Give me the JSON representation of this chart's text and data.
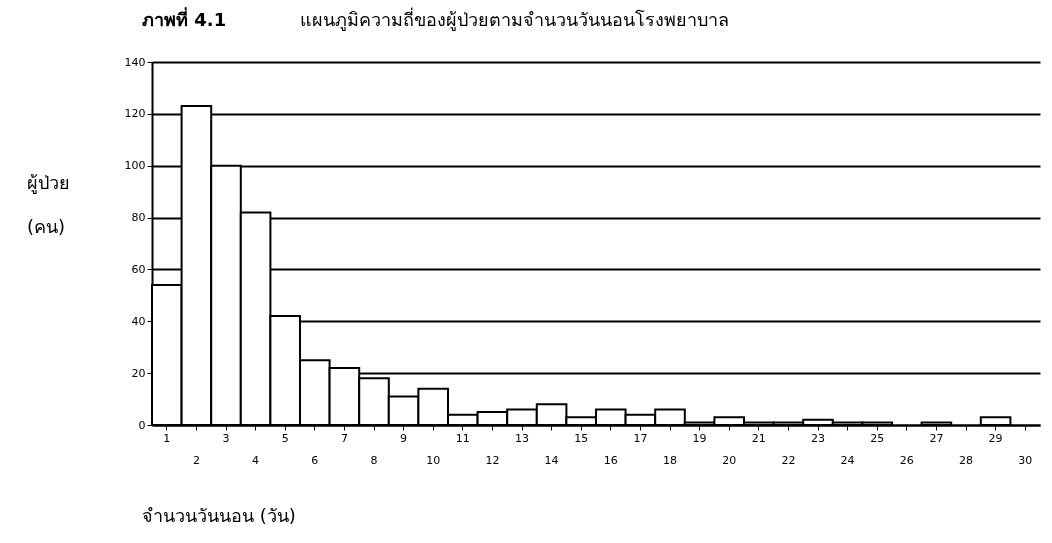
{
  "chart_data": {
    "type": "bar",
    "title": "ภาพที่ 4.1",
    "subtitle": "แผนภูมิความถี่ของผู้ป่วยตามจำนวนวันนอนโรงพยาบาล",
    "xlabel": "จำนวนวันนอน (วัน)",
    "ylabel": "ผู้ป่วย\n(คน)",
    "categories": [
      "1",
      "2",
      "3",
      "4",
      "5",
      "6",
      "7",
      "8",
      "9",
      "10",
      "11",
      "12",
      "13",
      "14",
      "15",
      "16",
      "17",
      "18",
      "19",
      "20",
      "21",
      "22",
      "23",
      "24",
      "25",
      "26",
      "27",
      "28",
      "29",
      "30"
    ],
    "values": [
      54,
      123,
      100,
      82,
      42,
      25,
      22,
      18,
      11,
      14,
      4,
      5,
      6,
      8,
      3,
      6,
      4,
      6,
      1,
      3,
      1,
      1,
      2,
      1,
      1,
      0,
      1,
      0,
      3,
      0
    ],
    "color": "#ffffff",
    "ylim": [
      0,
      140
    ],
    "yticks": [
      0,
      20,
      40,
      60,
      80,
      100,
      120,
      140
    ],
    "grid": "y"
  }
}
